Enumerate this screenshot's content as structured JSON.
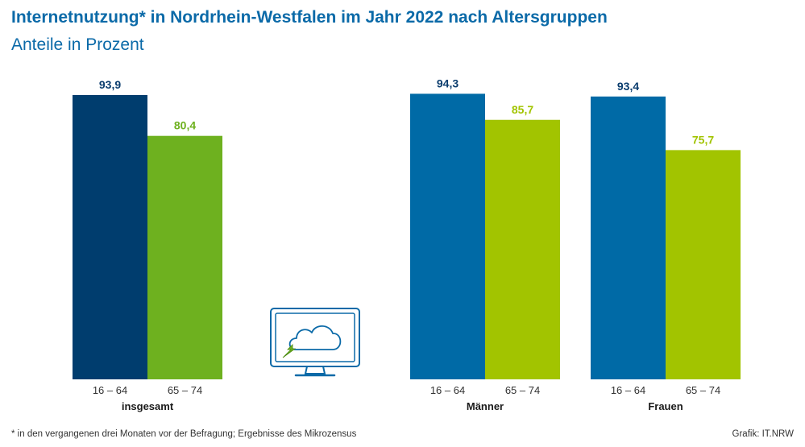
{
  "header": {
    "title": "Internetnutzung* in Nordrhein-Westfalen im Jahr 2022 nach Altersgruppen",
    "subtitle": "Anteile in Prozent"
  },
  "footer": {
    "footnote": "* in den vergangenen drei Monaten vor der Befragung; Ergebnisse des Mikrozensus",
    "credit": "Grafik: IT.NRW"
  },
  "icon": {
    "name": "monitor-cloud-icon"
  },
  "chart_data": {
    "type": "bar",
    "title": "Internetnutzung* in Nordrhein-Westfalen im Jahr 2022 nach Altersgruppen",
    "subtitle": "Anteile in Prozent",
    "groups": [
      "insgesamt",
      "Männer",
      "Frauen"
    ],
    "categories": [
      "16 – 64",
      "65 – 74"
    ],
    "series": [
      {
        "group": "insgesamt",
        "values": [
          93.9,
          80.4
        ],
        "labels": [
          "93,9",
          "80,4"
        ],
        "colors": [
          "#003d6e",
          "#6eb11f"
        ]
      },
      {
        "group": "Männer",
        "values": [
          94.3,
          85.7
        ],
        "labels": [
          "94,3",
          "85,7"
        ],
        "colors": [
          "#006aa6",
          "#a2c400"
        ]
      },
      {
        "group": "Frauen",
        "values": [
          93.4,
          75.7
        ],
        "labels": [
          "93,4",
          "75,7"
        ],
        "colors": [
          "#006aa6",
          "#a2c400"
        ]
      }
    ],
    "ylim": [
      0,
      100
    ],
    "grid": false,
    "legend": "none"
  }
}
